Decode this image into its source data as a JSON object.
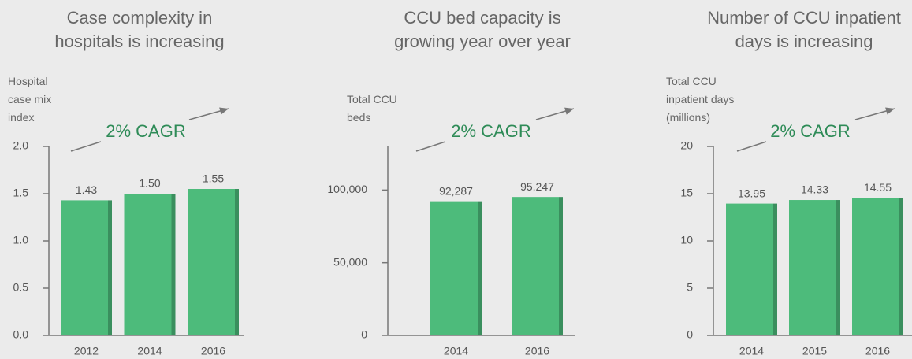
{
  "chart_data": [
    {
      "type": "bar",
      "title": "Case complexity in hospitals is increasing",
      "y_label": "Hospital case mix index",
      "annotation": "2% CAGR",
      "categories": [
        "2012",
        "2014",
        "2016"
      ],
      "values": [
        1.43,
        1.5,
        1.55
      ],
      "value_labels": [
        "1.43",
        "1.50",
        "1.55"
      ],
      "color": "#4dbb7b",
      "ylim": [
        0,
        2
      ],
      "yticks": [
        {
          "value": 0,
          "label": "0.0"
        },
        {
          "value": 0.5,
          "label": "0.5"
        },
        {
          "value": 1,
          "label": "1.0"
        },
        {
          "value": 1.5,
          "label": "1.5"
        },
        {
          "value": 2,
          "label": "2.0"
        }
      ]
    },
    {
      "type": "bar",
      "title": "CCU bed capacity is growing year over year",
      "y_label": "Total CCU beds",
      "annotation": "2% CAGR",
      "categories": [
        "2014",
        "2016"
      ],
      "values": [
        92287,
        95247
      ],
      "value_labels": [
        "92,287",
        "95,247"
      ],
      "color": "#4dbb7b",
      "ylim": [
        0,
        130000
      ],
      "yticks": [
        0,
        {
          "value": 50000,
          "label": "50,000"
        },
        {
          "value": 100000,
          "label": "100,000"
        }
      ]
    },
    {
      "type": "bar",
      "title": "Number of CCU inpatient days is increasing",
      "y_label": "Total CCU inpatient days (millions)",
      "annotation": "2% CAGR",
      "categories": [
        "2014",
        "2015",
        "2016"
      ],
      "values": [
        13.95,
        14.33,
        14.55
      ],
      "color": "#4dbb7b",
      "ylim": [
        0,
        20
      ],
      "yticks": [
        0,
        5,
        10,
        15,
        20
      ]
    }
  ]
}
